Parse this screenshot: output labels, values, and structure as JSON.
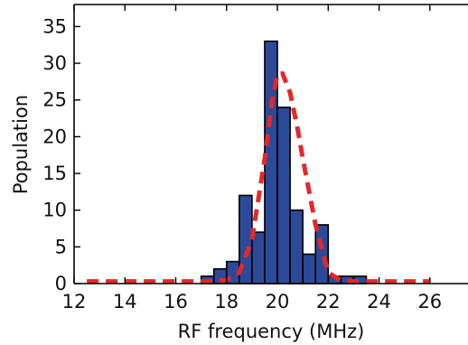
{
  "chart_data": {
    "type": "bar",
    "title": "",
    "xlabel": "RF frequency (MHz)",
    "ylabel": "Population",
    "xlim": [
      12,
      27.5
    ],
    "ylim": [
      0,
      38
    ],
    "xticks": [
      12,
      14,
      16,
      18,
      20,
      22,
      24,
      26
    ],
    "yticks": [
      0,
      5,
      10,
      15,
      20,
      25,
      30,
      35
    ],
    "grid": false,
    "legend": "none",
    "bin_width": 0.5,
    "histogram": {
      "name": "",
      "color": "#2c4a9a",
      "bins": [
        {
          "x": 17.25,
          "count": 1
        },
        {
          "x": 17.75,
          "count": 2
        },
        {
          "x": 18.25,
          "count": 3
        },
        {
          "x": 18.75,
          "count": 12
        },
        {
          "x": 19.25,
          "count": 7
        },
        {
          "x": 19.75,
          "count": 33
        },
        {
          "x": 20.25,
          "count": 24
        },
        {
          "x": 20.75,
          "count": 10
        },
        {
          "x": 21.25,
          "count": 4
        },
        {
          "x": 21.75,
          "count": 8
        },
        {
          "x": 22.25,
          "count": 1
        },
        {
          "x": 22.75,
          "count": 1
        },
        {
          "x": 23.25,
          "count": 1
        }
      ]
    },
    "fit_curve": {
      "name": "",
      "color": "#e8262a",
      "style": "dashed",
      "x": [
        12.5,
        13.5,
        14.5,
        15.5,
        16.5,
        17.0,
        17.5,
        18.0,
        18.5,
        19.0,
        19.5,
        19.8,
        20.0,
        20.2,
        20.5,
        20.8,
        21.0,
        21.5,
        22.0,
        22.5,
        23.0,
        24.0,
        25.0,
        26.0
      ],
      "y": [
        0.3,
        0.3,
        0.3,
        0.3,
        0.3,
        0.3,
        0.35,
        0.5,
        1.5,
        6,
        17,
        25,
        28.5,
        28.6,
        26,
        21,
        17,
        8,
        1.5,
        0.4,
        0.3,
        0.3,
        0.3,
        0.3
      ]
    }
  }
}
